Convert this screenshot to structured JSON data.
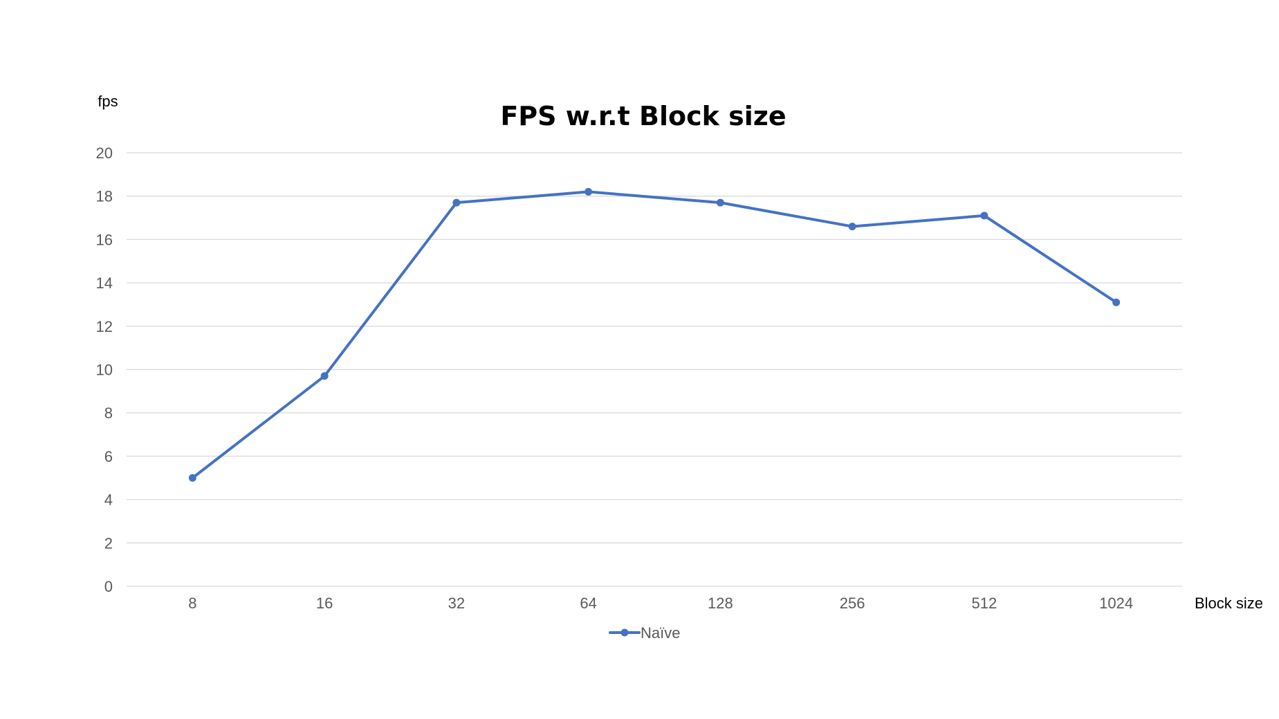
{
  "chart_data": {
    "type": "line",
    "title": "FPS w.r.t Block size",
    "xlabel": "Block size",
    "ylabel": "fps",
    "categories": [
      "8",
      "16",
      "32",
      "64",
      "128",
      "256",
      "512",
      "1024"
    ],
    "series": [
      {
        "name": "Naïve",
        "color": "#4472c4",
        "values": [
          5.0,
          9.7,
          17.7,
          18.2,
          17.7,
          16.6,
          17.1,
          13.1
        ]
      }
    ],
    "ylim": [
      0,
      20
    ],
    "yticks": [
      "0",
      "2",
      "4",
      "6",
      "8",
      "10",
      "12",
      "14",
      "16",
      "18",
      "20"
    ],
    "grid": true,
    "legend_position": "bottom"
  }
}
